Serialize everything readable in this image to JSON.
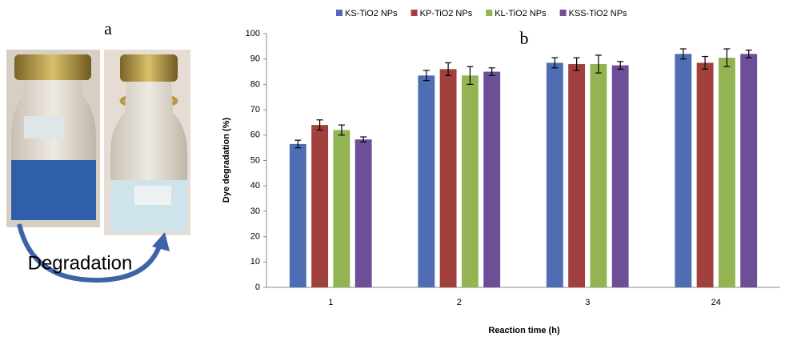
{
  "photo": {
    "label": "a",
    "caption": "Degradation"
  },
  "chart_data": {
    "type": "bar",
    "annotation": "b",
    "x_label": "Reaction time (h)",
    "y_label": "Dye degradation (%)",
    "categories": [
      "1",
      "2",
      "3",
      "24"
    ],
    "series": [
      {
        "name": "KS-TiO2 NPs",
        "color": "#4f6db3",
        "values": [
          56.5,
          83.5,
          88.5,
          92
        ],
        "errors": [
          1.5,
          2,
          2,
          2
        ]
      },
      {
        "name": "KP-TiO2 NPs",
        "color": "#a1403d",
        "values": [
          64,
          86,
          88,
          88.5
        ],
        "errors": [
          2,
          2.5,
          2.5,
          2.5
        ]
      },
      {
        "name": "KL-TiO2 NPs",
        "color": "#93b452",
        "values": [
          62,
          83.5,
          88,
          90.5
        ],
        "errors": [
          2,
          3.5,
          3.5,
          3.5
        ]
      },
      {
        "name": "KSS-TiO2 NPs",
        "color": "#6c4f96",
        "values": [
          58.3,
          85,
          87.5,
          92
        ],
        "errors": [
          1,
          1.5,
          1.5,
          1.5
        ]
      }
    ],
    "ylim": [
      0,
      100
    ],
    "yticks": [
      0,
      10,
      20,
      30,
      40,
      50,
      60,
      70,
      80,
      90,
      100
    ],
    "legend": "top",
    "grid": false
  }
}
